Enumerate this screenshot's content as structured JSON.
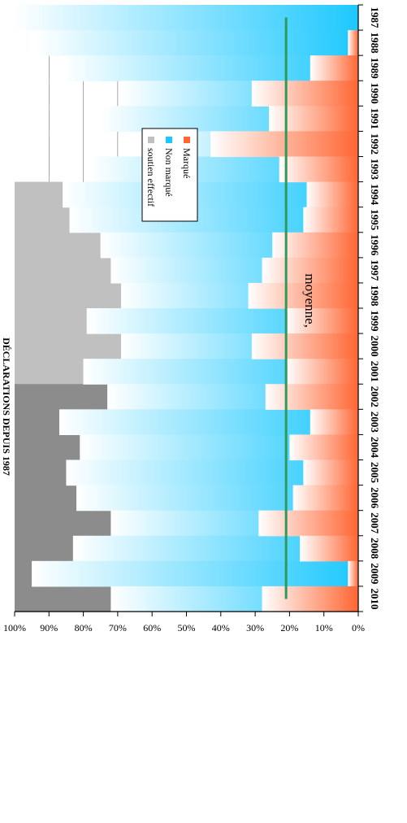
{
  "chart_data": {
    "type": "bar",
    "title": "DÉCLARATIONS DEPUIS 1987",
    "categories": [
      "1987",
      "1988",
      "1989",
      "1990",
      "1991",
      "1992",
      "1993",
      "1994",
      "1995",
      "1996",
      "1997",
      "1998",
      "1999",
      "2000",
      "2001",
      "2002",
      "2003",
      "2004",
      "2005",
      "2006",
      "2007",
      "2008",
      "2009",
      "2010"
    ],
    "series": [
      {
        "name": "Marqué",
        "color": "#ff6633",
        "values": [
          0,
          3,
          14,
          31,
          26,
          43,
          23,
          15,
          16,
          25,
          28,
          32,
          21,
          31,
          21,
          27,
          14,
          20,
          16,
          19,
          29,
          17,
          3,
          28
        ]
      },
      {
        "name": "Non marqué",
        "color": "#1ec8ff",
        "values": [
          100,
          94,
          86,
          69,
          75,
          58,
          78,
          86,
          84,
          75,
          72,
          69,
          79,
          69,
          80,
          73,
          87,
          81,
          85,
          82,
          72,
          83,
          95,
          72
        ]
      },
      {
        "name": "soutien effectif",
        "color": "#c0c0c0",
        "values": [
          null,
          null,
          null,
          null,
          null,
          null,
          null,
          86,
          84,
          75,
          72,
          69,
          79,
          69,
          80,
          73,
          87,
          81,
          85,
          82,
          72,
          83,
          95,
          72
        ]
      }
    ],
    "average": {
      "label": "moyenne,",
      "value": 21,
      "color": "#2e9a5a"
    },
    "ylim": [
      0,
      100
    ],
    "y_ticks": [
      "0%",
      "10%",
      "20%",
      "30%",
      "40%",
      "50%",
      "60%",
      "70%",
      "80%",
      "90%",
      "100%"
    ],
    "legend_position": "left",
    "orientation": "rotated-90"
  }
}
